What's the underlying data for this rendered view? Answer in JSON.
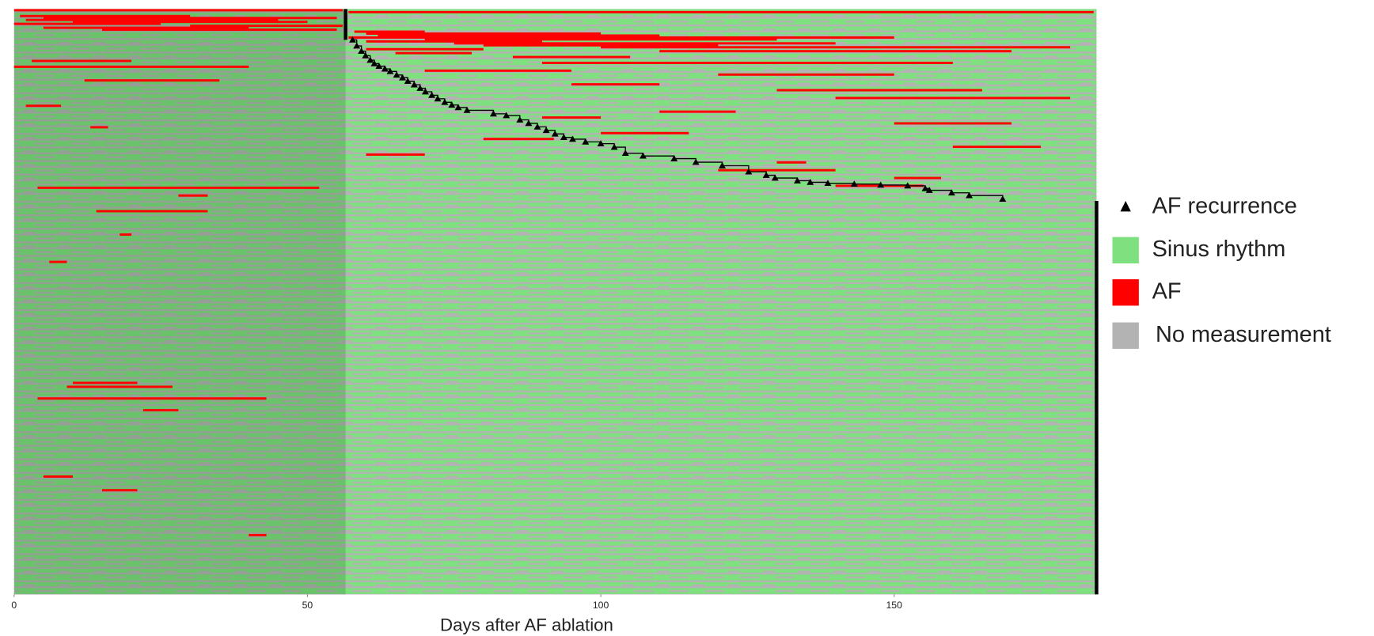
{
  "chart_data": {
    "type": "rhythm-raster",
    "xlabel": "Days after AF ablation",
    "xlim": [
      0,
      184.5
    ],
    "xticks": [
      0,
      50,
      100,
      150
    ],
    "ylim": [
      0,
      300
    ],
    "shaded_xrange": [
      0,
      56.5
    ],
    "legend": [
      {
        "name": "AF recurrence",
        "color": "#000000"
      },
      {
        "name": "Sinus rhythm",
        "color": "#7ee07e"
      },
      {
        "name": "AF",
        "color": "#ff0000"
      },
      {
        "name": "No measurement",
        "color": "#b3b3b3"
      }
    ],
    "recurrence": {
      "x": [
        57.7,
        58.4,
        59.2,
        59.9,
        60.7,
        61.4,
        62.2,
        63.2,
        64.1,
        65.2,
        66.2,
        67.1,
        68.2,
        69.2,
        70.1,
        71.2,
        72.2,
        73.4,
        74.6,
        75.7,
        77.2,
        81.7,
        83.9,
        86.2,
        87.7,
        89.2,
        90.7,
        92.2,
        93.7,
        95.2,
        97.4,
        100,
        102.3,
        104.2,
        107.2,
        112.5,
        116.2,
        120.7,
        125.2,
        128.2,
        129.7,
        133.5,
        135.7,
        138.7,
        143.2,
        147.7,
        152.3,
        155.3,
        156.0,
        159.8,
        162.8,
        168.5
      ],
      "y": [
        15.8,
        18.9,
        21.6,
        23.9,
        26.2,
        28.0,
        29.3,
        30.7,
        32.0,
        33.8,
        35.2,
        37.0,
        38.8,
        40.6,
        42.4,
        44.2,
        46.0,
        47.8,
        49.2,
        50.5,
        51.9,
        53.7,
        54.6,
        56.8,
        58.6,
        60.4,
        62.2,
        64.0,
        65.8,
        66.7,
        68.1,
        69.0,
        70.8,
        73.9,
        75.3,
        76.7,
        78.5,
        80.3,
        83.4,
        85.2,
        86.6,
        88.0,
        88.8,
        89.3,
        89.7,
        90.2,
        90.6,
        92.0,
        92.9,
        94.2,
        95.6,
        97.4
      ]
    },
    "af_episodes": [
      {
        "row": 0,
        "start": 0,
        "end": 56
      },
      {
        "row": 1,
        "start": 57,
        "end": 184
      },
      {
        "row": 3,
        "start": 1,
        "end": 30
      },
      {
        "row": 4,
        "start": 5,
        "end": 55
      },
      {
        "row": 5,
        "start": 2,
        "end": 45
      },
      {
        "row": 6,
        "start": 10,
        "end": 50
      },
      {
        "row": 7,
        "start": 0,
        "end": 25
      },
      {
        "row": 8,
        "start": 30,
        "end": 56
      },
      {
        "row": 9,
        "start": 5,
        "end": 40
      },
      {
        "row": 10,
        "start": 15,
        "end": 55
      },
      {
        "row": 11,
        "start": 58,
        "end": 70
      },
      {
        "row": 12,
        "start": 60,
        "end": 100
      },
      {
        "row": 13,
        "start": 62,
        "end": 110
      },
      {
        "row": 14,
        "start": 57,
        "end": 150
      },
      {
        "row": 15,
        "start": 70,
        "end": 130
      },
      {
        "row": 16,
        "start": 60,
        "end": 90
      },
      {
        "row": 17,
        "start": 75,
        "end": 140
      },
      {
        "row": 18,
        "start": 80,
        "end": 120
      },
      {
        "row": 19,
        "start": 100,
        "end": 180
      },
      {
        "row": 20,
        "start": 60,
        "end": 80
      },
      {
        "row": 21,
        "start": 110,
        "end": 170
      },
      {
        "row": 22,
        "start": 65,
        "end": 78
      },
      {
        "row": 24,
        "start": 85,
        "end": 105
      },
      {
        "row": 26,
        "start": 3,
        "end": 20
      },
      {
        "row": 27,
        "start": 90,
        "end": 160
      },
      {
        "row": 29,
        "start": 0,
        "end": 40
      },
      {
        "row": 31,
        "start": 70,
        "end": 95
      },
      {
        "row": 33,
        "start": 120,
        "end": 150
      },
      {
        "row": 36,
        "start": 12,
        "end": 35
      },
      {
        "row": 38,
        "start": 95,
        "end": 110
      },
      {
        "row": 41,
        "start": 130,
        "end": 165
      },
      {
        "row": 45,
        "start": 140,
        "end": 180
      },
      {
        "row": 49,
        "start": 2,
        "end": 8
      },
      {
        "row": 52,
        "start": 110,
        "end": 123
      },
      {
        "row": 55,
        "start": 90,
        "end": 100
      },
      {
        "row": 58,
        "start": 150,
        "end": 170
      },
      {
        "row": 60,
        "start": 13,
        "end": 16
      },
      {
        "row": 63,
        "start": 100,
        "end": 115
      },
      {
        "row": 66,
        "start": 80,
        "end": 92
      },
      {
        "row": 70,
        "start": 160,
        "end": 175
      },
      {
        "row": 74,
        "start": 60,
        "end": 70
      },
      {
        "row": 78,
        "start": 130,
        "end": 135
      },
      {
        "row": 82,
        "start": 120,
        "end": 140
      },
      {
        "row": 86,
        "start": 150,
        "end": 158
      },
      {
        "row": 90,
        "start": 140,
        "end": 155
      },
      {
        "row": 91,
        "start": 4,
        "end": 52
      },
      {
        "row": 95,
        "start": 28,
        "end": 33
      },
      {
        "row": 103,
        "start": 14,
        "end": 33
      },
      {
        "row": 115,
        "start": 18,
        "end": 20
      },
      {
        "row": 129,
        "start": 6,
        "end": 9
      },
      {
        "row": 191,
        "start": 10,
        "end": 21
      },
      {
        "row": 193,
        "start": 9,
        "end": 27
      },
      {
        "row": 199,
        "start": 4,
        "end": 43
      },
      {
        "row": 205,
        "start": 22,
        "end": 28
      },
      {
        "row": 239,
        "start": 5,
        "end": 10
      },
      {
        "row": 246,
        "start": 15,
        "end": 21
      },
      {
        "row": 269,
        "start": 40,
        "end": 43
      }
    ]
  }
}
